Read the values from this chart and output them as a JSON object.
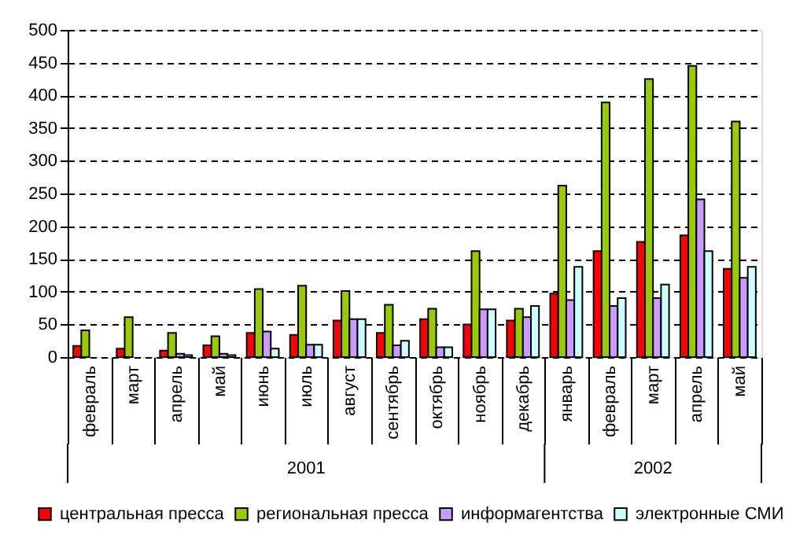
{
  "chart_data": {
    "type": "bar",
    "categories": [
      "февраль",
      "март",
      "апрель",
      "май",
      "июнь",
      "июль",
      "август",
      "сентябрь",
      "октябрь",
      "ноябрь",
      "декабрь",
      "январь",
      "февраль",
      "март",
      "апрель",
      "май"
    ],
    "series": [
      {
        "name": "центральная пресса",
        "color": "#ff0000",
        "values": [
          17,
          13,
          10,
          18,
          37,
          34,
          56,
          37,
          58,
          50,
          56,
          97,
          162,
          176,
          186,
          135
        ]
      },
      {
        "name": "региональная пресса",
        "color": "#99cc00",
        "values": [
          41,
          61,
          37,
          32,
          104,
          109,
          101,
          80,
          74,
          162,
          74,
          262,
          389,
          425,
          445,
          360
        ]
      },
      {
        "name": "информагентства",
        "color": "#cc99ff",
        "values": [
          null,
          null,
          5,
          5,
          39,
          19,
          58,
          18,
          15,
          73,
          61,
          87,
          78,
          90,
          241,
          121
        ]
      },
      {
        "name": "электронные СМИ",
        "color": "#ccffff",
        "values": [
          null,
          null,
          3,
          3,
          13,
          19,
          58,
          25,
          15,
          73,
          78,
          138,
          90,
          111,
          162,
          138
        ]
      }
    ],
    "annotations": [
      "2001",
      "2002"
    ],
    "ylim": [
      0,
      500
    ],
    "yticks": [
      0,
      50,
      100,
      150,
      200,
      250,
      300,
      350,
      400,
      450,
      500
    ],
    "grid": "y",
    "legend": "bottom"
  }
}
